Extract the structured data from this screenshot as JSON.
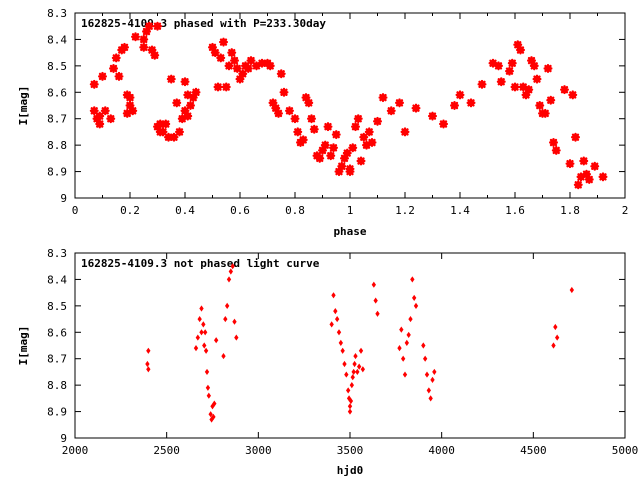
{
  "chart_data": [
    {
      "type": "scatter",
      "title": "162825-4109.3 phased with P=233.30day",
      "xlabel": "phase",
      "ylabel": "I[mag]",
      "xlim": [
        0,
        2
      ],
      "ylim": [
        8.3,
        9.0
      ],
      "y_inverted": true,
      "grid": false,
      "marker": "star",
      "color": "#ff0000",
      "x_ticks": [
        "0",
        "0.2",
        "0.4",
        "0.6",
        "0.8",
        "1",
        "1.2",
        "1.4",
        "1.6",
        "1.8",
        "2"
      ],
      "y_ticks": [
        "8.3",
        "8.4",
        "8.5",
        "8.6",
        "8.7",
        "8.8",
        "8.9",
        "9"
      ],
      "series": [
        {
          "x": [
            0.07,
            0.07,
            0.08,
            0.09,
            0.09,
            0.1,
            0.11,
            0.13,
            0.14,
            0.15,
            0.16,
            0.17,
            0.18,
            0.19,
            0.19,
            0.2,
            0.2,
            0.21,
            0.22,
            0.25,
            0.25,
            0.26,
            0.27,
            0.28,
            0.29,
            0.3,
            0.3,
            0.31,
            0.31,
            0.32,
            0.33,
            0.34,
            0.35,
            0.36,
            0.37,
            0.38,
            0.39,
            0.4,
            0.4,
            0.41,
            0.41,
            0.42,
            0.43,
            0.44,
            0.5,
            0.51,
            0.52,
            0.53,
            0.54,
            0.55,
            0.56,
            0.57,
            0.58,
            0.59,
            0.6,
            0.61,
            0.62,
            0.63,
            0.64,
            0.66,
            0.68,
            0.7,
            0.71,
            0.72,
            0.73,
            0.74,
            0.75,
            0.76,
            0.78,
            0.8,
            0.81,
            0.82,
            0.83,
            0.84,
            0.85,
            0.86,
            0.87,
            0.88,
            0.89,
            0.9,
            0.91,
            0.92,
            0.93,
            0.94,
            0.95,
            0.96,
            0.97,
            0.98,
            0.99,
            1.0,
            1.0,
            1.01,
            1.02,
            1.03,
            1.04,
            1.05,
            1.06,
            1.07,
            1.08,
            1.1,
            1.12,
            1.15,
            1.18,
            1.2,
            1.24,
            1.3,
            1.34,
            1.38,
            1.4,
            1.44,
            1.48,
            1.52,
            1.54,
            1.55,
            1.58,
            1.59,
            1.6,
            1.61,
            1.62,
            1.63,
            1.64,
            1.65,
            1.66,
            1.67,
            1.68,
            1.69,
            1.7,
            1.71,
            1.72,
            1.73,
            1.74,
            1.75,
            1.78,
            1.8,
            1.81,
            1.82,
            1.83,
            1.84,
            1.85,
            1.86,
            1.87,
            1.89,
            1.92
          ],
          "y": [
            8.67,
            8.57,
            8.7,
            8.72,
            8.69,
            8.54,
            8.67,
            8.7,
            8.51,
            8.47,
            8.54,
            8.44,
            8.43,
            8.68,
            8.61,
            8.65,
            8.62,
            8.67,
            8.39,
            8.43,
            8.4,
            8.37,
            8.35,
            8.44,
            8.46,
            8.35,
            8.73,
            8.72,
            8.75,
            8.75,
            8.72,
            8.77,
            8.55,
            8.77,
            8.64,
            8.75,
            8.7,
            8.67,
            8.56,
            8.61,
            8.69,
            8.65,
            8.62,
            8.6,
            8.43,
            8.45,
            8.58,
            8.47,
            8.41,
            8.58,
            8.5,
            8.45,
            8.48,
            8.51,
            8.55,
            8.53,
            8.5,
            8.51,
            8.48,
            8.5,
            8.49,
            8.49,
            8.5,
            8.64,
            8.66,
            8.68,
            8.53,
            8.6,
            8.67,
            8.7,
            8.75,
            8.79,
            8.78,
            8.62,
            8.64,
            8.7,
            8.74,
            8.84,
            8.85,
            8.82,
            8.8,
            8.73,
            8.84,
            8.81,
            8.76,
            8.9,
            8.88,
            8.85,
            8.83,
            8.89,
            8.9,
            8.81,
            8.73,
            8.7,
            8.86,
            8.77,
            8.8,
            8.75,
            8.79,
            8.71,
            8.62,
            8.67,
            8.64,
            8.75,
            8.66,
            8.69,
            8.72,
            8.65,
            8.61,
            8.64,
            8.57,
            8.49,
            8.5,
            8.56,
            8.52,
            8.49,
            8.58,
            8.42,
            8.44,
            8.58,
            8.61,
            8.59,
            8.48,
            8.5,
            8.55,
            8.65,
            8.68,
            8.68,
            8.51,
            8.63,
            8.79,
            8.82,
            8.59,
            8.87,
            8.61,
            8.77,
            8.95,
            8.92,
            8.86,
            8.91,
            8.93,
            8.88,
            8.92
          ]
        }
      ]
    },
    {
      "type": "scatter",
      "title": "162825-4109.3 not phased light curve",
      "xlabel": "hjd0",
      "ylabel": "I[mag]",
      "xlim": [
        2000,
        5000
      ],
      "ylim": [
        8.3,
        9.0
      ],
      "y_inverted": true,
      "grid": false,
      "marker": "diamond",
      "color": "#ff0000",
      "x_ticks": [
        "2000",
        "2500",
        "3000",
        "3500",
        "4000",
        "4500",
        "5000"
      ],
      "y_ticks": [
        "8.3",
        "8.4",
        "8.5",
        "8.6",
        "8.7",
        "8.8",
        "8.9",
        "9"
      ],
      "series": [
        {
          "x": [
            2395,
            2400,
            2400,
            2660,
            2670,
            2680,
            2690,
            2690,
            2700,
            2705,
            2710,
            2715,
            2720,
            2725,
            2730,
            2740,
            2745,
            2750,
            2755,
            2760,
            2770,
            2810,
            2820,
            2830,
            2840,
            2850,
            2860,
            2870,
            2880,
            3400,
            3410,
            3420,
            3430,
            3440,
            3450,
            3460,
            3470,
            3480,
            3490,
            3495,
            3500,
            3500,
            3505,
            3510,
            3515,
            3520,
            3525,
            3530,
            3540,
            3550,
            3560,
            3570,
            3630,
            3640,
            3650,
            3770,
            3780,
            3790,
            3800,
            3810,
            3820,
            3830,
            3840,
            3850,
            3860,
            3900,
            3910,
            3920,
            3930,
            3940,
            3950,
            3960,
            4610,
            4620,
            4630,
            4710
          ],
          "y": [
            8.72,
            8.74,
            8.67,
            8.66,
            8.62,
            8.55,
            8.6,
            8.51,
            8.57,
            8.65,
            8.6,
            8.67,
            8.75,
            8.81,
            8.84,
            8.91,
            8.93,
            8.88,
            8.92,
            8.87,
            8.63,
            8.69,
            8.55,
            8.5,
            8.4,
            8.37,
            8.35,
            8.56,
            8.62,
            8.57,
            8.46,
            8.52,
            8.55,
            8.6,
            8.64,
            8.67,
            8.72,
            8.76,
            8.82,
            8.85,
            8.88,
            8.9,
            8.86,
            8.8,
            8.77,
            8.75,
            8.72,
            8.69,
            8.75,
            8.73,
            8.67,
            8.74,
            8.42,
            8.48,
            8.53,
            8.66,
            8.59,
            8.7,
            8.76,
            8.64,
            8.61,
            8.55,
            8.4,
            8.47,
            8.5,
            8.65,
            8.7,
            8.76,
            8.82,
            8.85,
            8.78,
            8.75,
            8.65,
            8.58,
            8.62,
            8.44
          ]
        }
      ]
    }
  ]
}
